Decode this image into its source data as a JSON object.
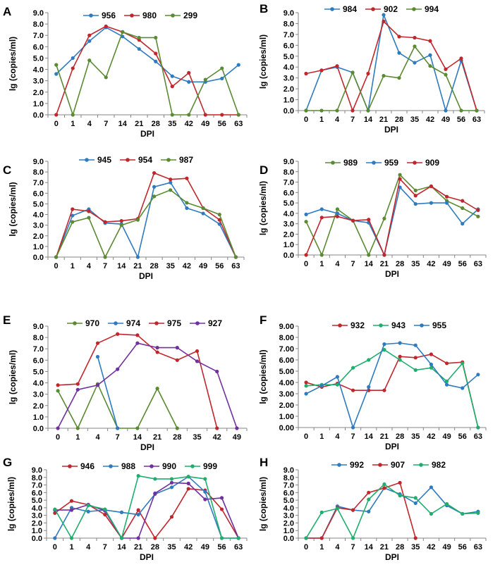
{
  "figure": {
    "y_axis_label": "lg (copies/ml)",
    "x_axis_label": "DPI"
  },
  "chart_data": [
    {
      "panel": "A",
      "type": "line",
      "categories": [
        "0",
        "1",
        "4",
        "7",
        "14",
        "21",
        "28",
        "35",
        "42",
        "49",
        "56",
        "63"
      ],
      "ylim": [
        0,
        9
      ],
      "yticks": [
        "0.0",
        "1.0",
        "2.0",
        "3.0",
        "4.0",
        "5.0",
        "6.0",
        "7.0",
        "8.0",
        "9.0"
      ],
      "xlabel": "DPI",
      "ylabel": "lg (copies/ml)",
      "series": [
        {
          "name": "956",
          "color": "#2e7bc0",
          "values": [
            3.6,
            5.0,
            6.5,
            7.7,
            6.9,
            5.8,
            4.7,
            3.4,
            2.9,
            2.9,
            3.2,
            4.4
          ]
        },
        {
          "name": "980",
          "color": "#c0272d",
          "values": [
            0,
            4.1,
            7.0,
            7.8,
            7.3,
            6.6,
            5.4,
            2.5,
            3.7,
            0,
            0,
            0
          ]
        },
        {
          "name": "299",
          "color": "#5a8a32",
          "values": [
            4.4,
            0,
            4.8,
            3.3,
            7.3,
            6.8,
            6.8,
            0,
            0,
            3.1,
            4.1,
            0
          ]
        }
      ]
    },
    {
      "panel": "B",
      "type": "line",
      "categories": [
        "0",
        "1",
        "4",
        "7",
        "14",
        "21",
        "28",
        "35",
        "42",
        "49",
        "56",
        "63"
      ],
      "ylim": [
        0,
        9
      ],
      "yticks": [
        "0.0",
        "1.0",
        "2.0",
        "3.0",
        "4.0",
        "5.0",
        "6.0",
        "7.0",
        "8.0",
        "9.0"
      ],
      "xlabel": "DPI",
      "ylabel": "lg (copies/ml)",
      "series": [
        {
          "name": "984",
          "color": "#2e7bc0",
          "values": [
            0,
            3.7,
            4.0,
            3.5,
            0,
            8.8,
            5.3,
            4.4,
            5.1,
            0,
            4.6,
            0
          ]
        },
        {
          "name": "902",
          "color": "#c0272d",
          "values": [
            3.4,
            3.7,
            4.1,
            0,
            3.4,
            8.2,
            6.8,
            6.7,
            6.4,
            3.8,
            4.8,
            0
          ]
        },
        {
          "name": "994",
          "color": "#5a8a32",
          "values": [
            0,
            0,
            0,
            3.5,
            0,
            3.2,
            3.0,
            5.9,
            4.1,
            3.3,
            0,
            0
          ]
        }
      ]
    },
    {
      "panel": "C",
      "type": "line",
      "categories": [
        "0",
        "1",
        "4",
        "7",
        "14",
        "21",
        "28",
        "35",
        "42",
        "49",
        "56",
        "63"
      ],
      "ylim": [
        0,
        9
      ],
      "yticks": [
        "0.0",
        "1.0",
        "2.0",
        "3.0",
        "4.0",
        "5.0",
        "6.0",
        "7.0",
        "8.0",
        "9.0"
      ],
      "xlabel": "DPI",
      "ylabel": "lg (copies/ml)",
      "series": [
        {
          "name": "945",
          "color": "#2e7bc0",
          "values": [
            0,
            3.9,
            4.5,
            3.2,
            3.1,
            0,
            6.6,
            7.0,
            4.6,
            4.1,
            3.1,
            0
          ]
        },
        {
          "name": "954",
          "color": "#c0272d",
          "values": [
            0,
            4.5,
            4.3,
            3.3,
            3.4,
            3.6,
            7.9,
            7.3,
            7.4,
            4.6,
            3.5,
            0
          ]
        },
        {
          "name": "987",
          "color": "#5a8a32",
          "values": [
            0,
            3.3,
            3.7,
            0,
            3.0,
            3.5,
            5.7,
            6.3,
            5.1,
            4.6,
            4.0,
            0
          ]
        }
      ]
    },
    {
      "panel": "D",
      "type": "line",
      "categories": [
        "0",
        "1",
        "4",
        "7",
        "14",
        "21",
        "28",
        "35",
        "42",
        "49",
        "56",
        "63"
      ],
      "ylim": [
        0,
        9
      ],
      "yticks": [
        "0.0",
        "1.0",
        "2.0",
        "3.0",
        "4.0",
        "5.0",
        "6.0",
        "7.0",
        "8.0",
        "9.0"
      ],
      "xlabel": "DPI",
      "ylabel": "lg (copies/ml)",
      "series": [
        {
          "name": "989",
          "color": "#5a8a32",
          "values": [
            3.2,
            0,
            4.4,
            3.3,
            0,
            3.5,
            7.7,
            6.2,
            6.6,
            5.2,
            4.5,
            3.7
          ]
        },
        {
          "name": "959",
          "color": "#2e7bc0",
          "values": [
            3.9,
            4.4,
            4.0,
            3.3,
            3.1,
            0,
            6.5,
            4.9,
            5.0,
            5.0,
            3.0,
            4.4
          ]
        },
        {
          "name": "909",
          "color": "#c0272d",
          "values": [
            0,
            3.6,
            3.7,
            3.3,
            3.4,
            0,
            7.3,
            5.7,
            6.6,
            5.6,
            5.2,
            4.3
          ]
        }
      ]
    },
    {
      "panel": "E",
      "type": "line",
      "categories": [
        "0",
        "1",
        "4",
        "7",
        "14",
        "21",
        "28",
        "35",
        "42",
        "49"
      ],
      "ylim": [
        0,
        9
      ],
      "yticks": [
        "0.0",
        "1.0",
        "2.0",
        "3.0",
        "4.0",
        "5.0",
        "6.0",
        "7.0",
        "8.0",
        "9.0"
      ],
      "xlabel": "DPI",
      "ylabel": "lg (copies/ml)",
      "series": [
        {
          "name": "970",
          "color": "#5a8a32",
          "values": [
            3.3,
            0,
            3.9,
            0,
            0,
            3.5,
            0,
            null,
            null,
            null
          ]
        },
        {
          "name": "974",
          "color": "#2e7bc0",
          "values": [
            null,
            null,
            6.3,
            0,
            null,
            null,
            null,
            null,
            null,
            null
          ]
        },
        {
          "name": "975",
          "color": "#c0272d",
          "values": [
            3.8,
            3.9,
            7.5,
            8.3,
            8.2,
            6.7,
            6.0,
            6.8,
            0,
            null
          ]
        },
        {
          "name": "927",
          "color": "#7030a0",
          "values": [
            0,
            3.4,
            3.8,
            5.2,
            7.5,
            7.1,
            7.1,
            5.9,
            5.0,
            0
          ]
        }
      ]
    },
    {
      "panel": "F",
      "type": "line",
      "categories": [
        "0",
        "1",
        "4",
        "7",
        "14",
        "21",
        "28",
        "35",
        "42",
        "49",
        "56",
        "63"
      ],
      "ylim": [
        0,
        9
      ],
      "yticks": [
        "0.00",
        "1.00",
        "2.00",
        "3.00",
        "4.00",
        "5.00",
        "6.00",
        "7.00",
        "8.00",
        "9.00"
      ],
      "xlabel": "DPI",
      "ylabel": "lg (copies/ml)",
      "series": [
        {
          "name": "932",
          "color": "#c0272d",
          "values": [
            4.0,
            3.6,
            3.9,
            3.3,
            3.3,
            3.3,
            6.3,
            6.2,
            6.5,
            5.7,
            5.8,
            0
          ]
        },
        {
          "name": "943",
          "color": "#1fae6e",
          "values": [
            3.7,
            3.8,
            3.8,
            5.3,
            6.0,
            6.9,
            6.0,
            5.1,
            5.3,
            4.1,
            5.7,
            0
          ]
        },
        {
          "name": "955",
          "color": "#2e7bc0",
          "values": [
            3.0,
            3.7,
            4.5,
            0,
            3.6,
            7.4,
            7.5,
            7.3,
            5.6,
            3.8,
            3.5,
            4.7
          ]
        }
      ]
    },
    {
      "panel": "G",
      "type": "line",
      "categories": [
        "0",
        "1",
        "4",
        "7",
        "14",
        "21",
        "28",
        "35",
        "42",
        "49",
        "56",
        "63"
      ],
      "ylim": [
        0,
        9
      ],
      "yticks": [
        "0.0",
        "1.0",
        "2.0",
        "3.0",
        "4.0",
        "5.0",
        "6.0",
        "7.0",
        "8.0",
        "9.0"
      ],
      "xlabel": "DPI",
      "ylabel": "lg (copies/ml)",
      "series": [
        {
          "name": "946",
          "color": "#c0272d",
          "values": [
            3.3,
            4.9,
            4.4,
            3.1,
            0,
            3.7,
            0,
            2.8,
            6.5,
            6.3,
            3.8,
            0
          ]
        },
        {
          "name": "988",
          "color": "#2e7bc0",
          "values": [
            0,
            4.0,
            3.5,
            3.7,
            3.4,
            3.1,
            5.8,
            6.7,
            8.1,
            6.1,
            0,
            0
          ]
        },
        {
          "name": "990",
          "color": "#7030a0",
          "values": [
            3.7,
            3.7,
            4.4,
            3.6,
            0,
            0,
            5.9,
            7.3,
            7.2,
            5.1,
            5.3,
            0
          ]
        },
        {
          "name": "999",
          "color": "#1fae6e",
          "values": [
            3.8,
            0,
            4.3,
            3.8,
            0,
            8.2,
            7.8,
            7.8,
            8.1,
            7.8,
            0,
            0
          ]
        }
      ]
    },
    {
      "panel": "H",
      "type": "line",
      "categories": [
        "0",
        "1",
        "4",
        "7",
        "14",
        "21",
        "28",
        "35",
        "42",
        "49",
        "56",
        "63"
      ],
      "ylim": [
        0,
        9
      ],
      "yticks": [
        "0.0",
        "1.0",
        "2.0",
        "3.0",
        "4.0",
        "5.0",
        "6.0",
        "7.0",
        "8.0",
        "9.0"
      ],
      "xlabel": "DPI",
      "ylabel": "lg (copies/ml)",
      "series": [
        {
          "name": "992",
          "color": "#2e7bc0",
          "values": [
            0,
            0,
            4.2,
            3.7,
            3.5,
            6.6,
            5.8,
            4.6,
            6.7,
            4.3,
            3.2,
            3.5
          ]
        },
        {
          "name": "907",
          "color": "#c0272d",
          "values": [
            0,
            0,
            4.0,
            3.7,
            6.0,
            6.6,
            7.3,
            0,
            null,
            null,
            null,
            null
          ]
        },
        {
          "name": "982",
          "color": "#1fae6e",
          "values": [
            0,
            3.4,
            3.9,
            0,
            5.1,
            7.1,
            5.6,
            5.3,
            3.2,
            4.5,
            3.2,
            3.3
          ]
        }
      ]
    }
  ]
}
